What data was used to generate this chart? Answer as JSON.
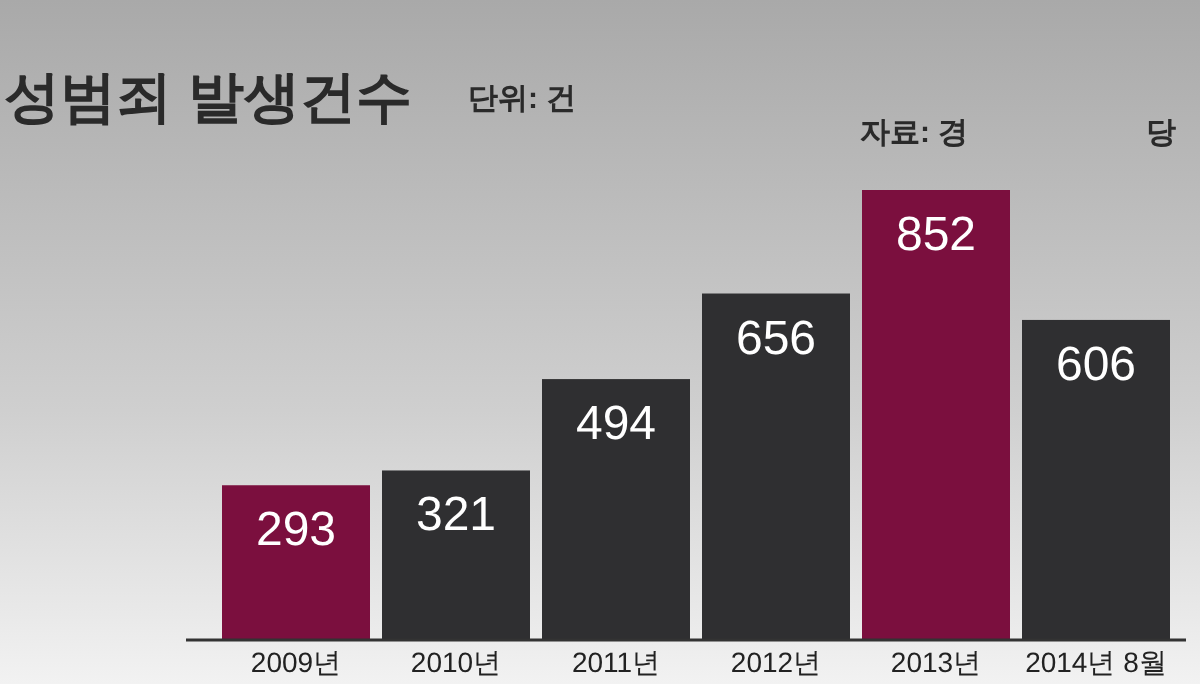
{
  "chart_data": {
    "type": "bar",
    "title": "성범죄 발생건수",
    "subtitle": "단위: 건",
    "annotations": [
      "자료: 경",
      "당"
    ],
    "categories": [
      "2009년",
      "2010년",
      "2011년",
      "2012년",
      "2013년",
      "2014년 8월"
    ],
    "values": [
      293,
      321,
      494,
      656,
      852,
      606
    ],
    "colors": [
      "#7b0f3e",
      "#2f2f31",
      "#2f2f31",
      "#2f2f31",
      "#7b0f3e",
      "#2f2f31"
    ],
    "data_labels": true
  }
}
